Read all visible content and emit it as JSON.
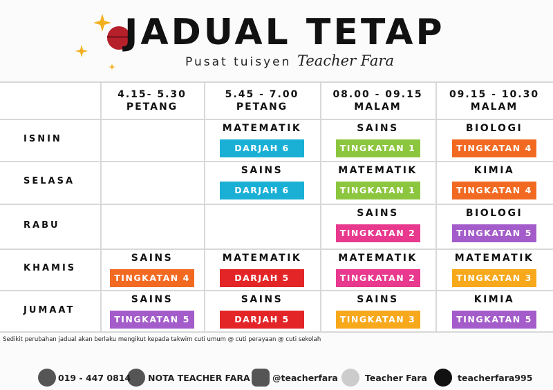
{
  "header": {
    "title": "JADUAL TETAP",
    "subtitle": "Pusat tuisyen",
    "signature": "Teacher Fara"
  },
  "table": {
    "columns": [
      {
        "time": "4.15- 5.30",
        "period": "PETANG"
      },
      {
        "time": "5.45 - 7.00",
        "period": "PETANG"
      },
      {
        "time": "08.00 - 09.15",
        "period": "MALAM"
      },
      {
        "time": "09.15 - 10.30",
        "period": "MALAM"
      }
    ],
    "rows": [
      {
        "day": "ISNIN",
        "cells": [
          null,
          {
            "subject": "MATEMATIK",
            "class": "DARJAH 6",
            "color": "#1ab0d6"
          },
          {
            "subject": "SAINS",
            "class": "TINGKATAN 1",
            "color": "#8cc63f"
          },
          {
            "subject": "BIOLOGI",
            "class": "TINGKATAN 4",
            "color": "#f26a22"
          }
        ]
      },
      {
        "day": "SELASA",
        "cells": [
          null,
          {
            "subject": "SAINS",
            "class": "DARJAH 6",
            "color": "#1ab0d6"
          },
          {
            "subject": "MATEMATIK",
            "class": "TINGKATAN 1",
            "color": "#8cc63f"
          },
          {
            "subject": "KIMIA",
            "class": "TINGKATAN 4",
            "color": "#f26a22"
          }
        ]
      },
      {
        "day": "RABU",
        "cells": [
          null,
          null,
          {
            "subject": "SAINS",
            "class": "TINGKATAN 2",
            "color": "#e8398e"
          },
          {
            "subject": "BIOLOGI",
            "class": "TINGKATAN 5",
            "color": "#a35cc9"
          }
        ]
      },
      {
        "day": "KHAMIS",
        "cells": [
          {
            "subject": "SAINS",
            "class": "TINGKATAN 4",
            "color": "#f26a22"
          },
          {
            "subject": "MATEMATIK",
            "class": "DARJAH 5",
            "color": "#e32527"
          },
          {
            "subject": "MATEMATIK",
            "class": "TINGKATAN 2",
            "color": "#e8398e"
          },
          {
            "subject": "MATEMATIK",
            "class": "TINGKATAN 3",
            "color": "#f7a81b"
          }
        ]
      },
      {
        "day": "JUMAAT",
        "cells": [
          {
            "subject": "SAINS",
            "class": "TINGKATAN 5",
            "color": "#a35cc9"
          },
          {
            "subject": "SAINS",
            "class": "DARJAH 5",
            "color": "#e32527"
          },
          {
            "subject": "SAINS",
            "class": "TINGKATAN 3",
            "color": "#f7a81b"
          },
          {
            "subject": "KIMIA",
            "class": "TINGKATAN 5",
            "color": "#a35cc9"
          }
        ]
      }
    ]
  },
  "note": "Sedikit perubahan jadual akan berlaku mengikut kepada takwim cuti umum @ cuti perayaan @ cuti sekolah",
  "contacts": [
    "019 - 447 0814",
    "NOTA TEACHER FARA",
    "@teacherfara",
    "Teacher Fara",
    "teacherfara995"
  ]
}
